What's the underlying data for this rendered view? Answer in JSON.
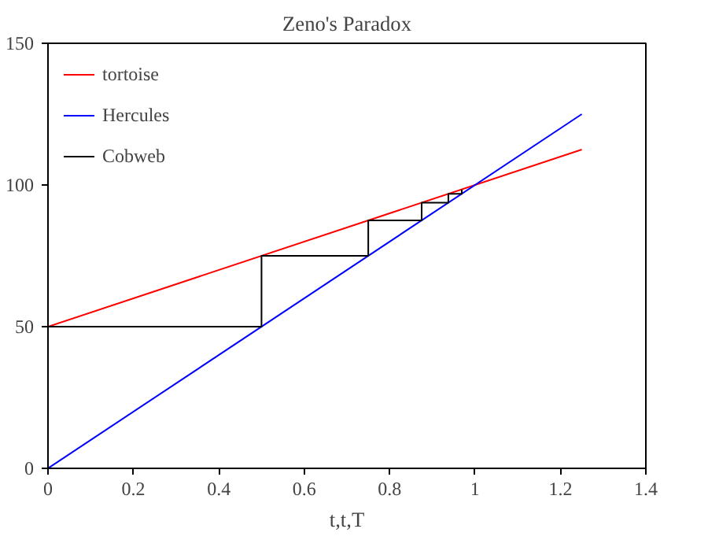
{
  "chart_data": {
    "type": "line",
    "title": "Zeno's Paradox",
    "xlabel": "t,t,T",
    "xlim": [
      0,
      1.4
    ],
    "xticks": [
      0,
      0.2,
      0.4,
      0.6,
      0.8,
      1,
      1.2,
      1.4
    ],
    "ylim": [
      0,
      150
    ],
    "yticks": [
      0,
      50,
      100,
      150
    ],
    "series": [
      {
        "name": "tortoise",
        "color": "#ff0000",
        "x": [
          0,
          1.25
        ],
        "values": [
          50,
          112.5
        ]
      },
      {
        "name": "Hercules",
        "color": "#0000ff",
        "x": [
          0,
          1.25
        ],
        "values": [
          0,
          125
        ]
      },
      {
        "name": "Cobweb",
        "color": "#000000",
        "x": [
          0,
          0.5,
          0.5,
          0.75,
          0.75,
          0.875,
          0.875,
          0.9375,
          0.9375,
          0.969,
          0.969
        ],
        "values": [
          50,
          50,
          75,
          75,
          87.5,
          87.5,
          93.75,
          93.75,
          96.9,
          96.9,
          98.4
        ]
      }
    ],
    "legend": "left",
    "grid": false,
    "marker": "none",
    "line_style": "solid"
  }
}
